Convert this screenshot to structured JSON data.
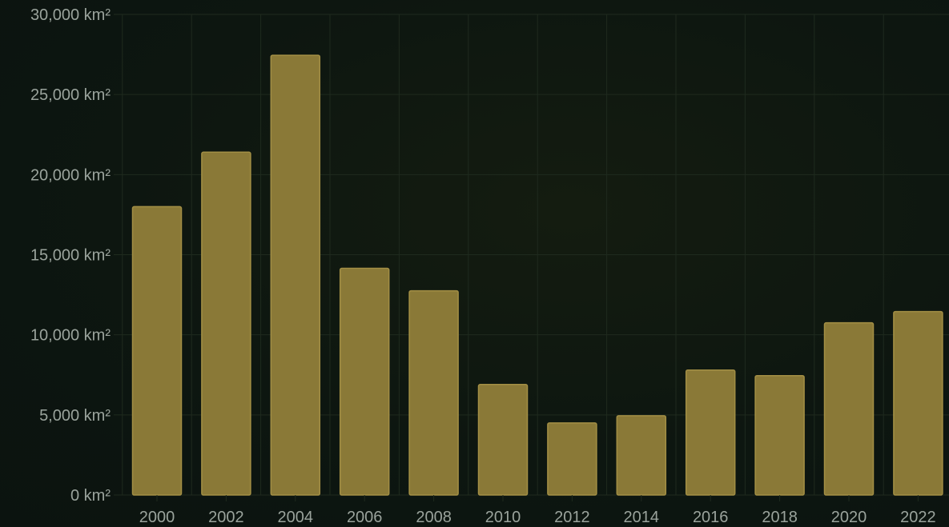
{
  "chart_data": {
    "type": "bar",
    "title": "",
    "xlabel": "",
    "ylabel": "",
    "categories": [
      "2000",
      "2002",
      "2004",
      "2006",
      "2008",
      "2010",
      "2012",
      "2014",
      "2016",
      "2018",
      "2020",
      "2022"
    ],
    "values": [
      18000,
      21400,
      27450,
      14150,
      12750,
      6900,
      4500,
      4950,
      7800,
      7450,
      10750,
      11450
    ],
    "ylim": [
      0,
      30000
    ],
    "y_ticks": [
      0,
      5000,
      10000,
      15000,
      20000,
      25000,
      30000
    ],
    "y_tick_labels": [
      "0 km²",
      "5,000 km²",
      "10,000 km²",
      "15,000 km²",
      "20,000 km²",
      "25,000 km²",
      "30,000 km²"
    ],
    "grid": true,
    "legend": "none"
  },
  "colors": {
    "bar_fill": "#8a7937",
    "bar_stroke": "#a38f45",
    "grid": "#1f2a1e",
    "tick_text": "#9aa39c"
  }
}
